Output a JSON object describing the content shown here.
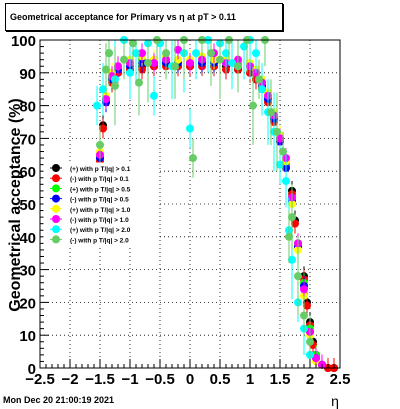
{
  "title": "Geometrical acceptance for Primary vs   η at pT > 0.11",
  "timestamp": "Mon Dec 20 21:00:19 2021",
  "chart_data": {
    "type": "scatter",
    "title": "Geometrical acceptance for Primary vs   η at pT > 0.11",
    "xlabel": "η",
    "ylabel": "Geometrical acceptance (%)",
    "xlim": [
      -2.5,
      2.5
    ],
    "ylim": [
      0,
      100
    ],
    "x_ticks": [
      "−2.5",
      "−2",
      "−1.5",
      "−1",
      "−0.5",
      "0",
      "0.5",
      "1",
      "1.5",
      "2",
      "2.5"
    ],
    "y_ticks": [
      "0",
      "10",
      "20",
      "30",
      "40",
      "50",
      "60",
      "70",
      "80",
      "90",
      "100"
    ],
    "grid": true,
    "legend_position": "left-middle",
    "series": [
      {
        "name": "(+) with p T/|q| > 0.1",
        "color": "#000000",
        "x": [
          -1.5,
          -1.45,
          -1.4,
          -1.3,
          -1.2,
          -1.0,
          -0.8,
          -0.6,
          -0.4,
          -0.2,
          0.0,
          0.2,
          0.4,
          0.6,
          0.8,
          1.0,
          1.1,
          1.2,
          1.3,
          1.4,
          1.5,
          1.6,
          1.7,
          1.75,
          1.8,
          1.9,
          1.95,
          2.0,
          2.05,
          2.1,
          2.2,
          2.3,
          2.4
        ],
        "y": [
          64,
          74,
          82,
          88,
          90,
          91,
          92,
          92,
          93,
          92,
          92,
          93,
          92,
          92,
          91,
          90,
          88,
          86,
          82,
          76,
          70,
          62,
          54,
          45,
          38,
          28,
          20,
          14,
          8,
          4,
          1,
          0,
          0
        ]
      },
      {
        "name": "(-) with p T/|q| > 0.1",
        "color": "#ff0000",
        "x": [
          -1.5,
          -1.45,
          -1.4,
          -1.3,
          -1.2,
          -1.0,
          -0.8,
          -0.6,
          -0.4,
          -0.2,
          0.0,
          0.2,
          0.4,
          0.6,
          0.8,
          1.0,
          1.1,
          1.2,
          1.3,
          1.4,
          1.5,
          1.6,
          1.7,
          1.75,
          1.8,
          1.9,
          1.95,
          2.0,
          2.05,
          2.1,
          2.2,
          2.3,
          2.4
        ],
        "y": [
          63,
          73,
          81,
          87,
          90,
          91,
          91,
          92,
          92,
          92,
          92,
          92,
          92,
          91,
          91,
          90,
          88,
          85,
          81,
          75,
          69,
          61,
          53,
          44,
          37,
          27,
          19,
          13,
          7,
          3,
          1,
          0,
          0
        ]
      },
      {
        "name": "(+) with p T/|q| > 0.5",
        "color": "#00ff00",
        "x": [
          -1.5,
          -1.4,
          -1.3,
          -1.2,
          -1.0,
          -0.8,
          -0.6,
          -0.4,
          -0.2,
          0.0,
          0.2,
          0.4,
          0.6,
          0.8,
          1.0,
          1.1,
          1.2,
          1.3,
          1.4,
          1.5,
          1.6,
          1.7,
          1.8,
          1.9,
          2.0,
          2.1,
          2.2
        ],
        "y": [
          65,
          82,
          89,
          92,
          93,
          94,
          93,
          94,
          93,
          93,
          94,
          93,
          94,
          93,
          92,
          90,
          87,
          83,
          77,
          70,
          62,
          52,
          38,
          26,
          12,
          4,
          1
        ]
      },
      {
        "name": "(-) with p T/|q| > 0.5",
        "color": "#0000ff",
        "x": [
          -1.5,
          -1.4,
          -1.3,
          -1.2,
          -1.0,
          -0.8,
          -0.6,
          -0.4,
          -0.2,
          0.0,
          0.2,
          0.4,
          0.6,
          0.8,
          1.0,
          1.1,
          1.2,
          1.3,
          1.4,
          1.5,
          1.6,
          1.7,
          1.8,
          1.9,
          2.0,
          2.1,
          2.2
        ],
        "y": [
          64,
          81,
          88,
          91,
          92,
          93,
          93,
          93,
          93,
          93,
          93,
          93,
          93,
          92,
          92,
          90,
          86,
          82,
          76,
          69,
          61,
          51,
          37,
          25,
          11,
          3,
          1
        ]
      },
      {
        "name": "(+) with p T/|q| > 1.0",
        "color": "#ffff00",
        "x": [
          -1.5,
          -1.4,
          -1.3,
          -1.2,
          -1.0,
          -0.8,
          -0.6,
          -0.4,
          -0.2,
          0.0,
          0.2,
          0.4,
          0.6,
          0.8,
          1.0,
          1.1,
          1.2,
          1.3,
          1.4,
          1.5,
          1.6,
          1.7,
          1.8,
          1.9,
          2.0,
          2.1
        ],
        "y": [
          66,
          83,
          90,
          92,
          94,
          95,
          94,
          95,
          94,
          94,
          95,
          94,
          94,
          94,
          93,
          91,
          88,
          84,
          78,
          71,
          63,
          50,
          36,
          22,
          10,
          2
        ]
      },
      {
        "name": "(-) with p T/|q| > 1.0",
        "color": "#ff00ff",
        "x": [
          -1.5,
          -1.4,
          -1.3,
          -1.2,
          -1.0,
          -0.8,
          -0.6,
          -0.4,
          -0.2,
          0.0,
          0.2,
          0.4,
          0.6,
          0.8,
          1.0,
          1.1,
          1.2,
          1.3,
          1.4,
          1.5,
          1.6,
          1.7,
          1.8,
          1.9,
          2.0,
          2.1,
          2.2
        ],
        "y": [
          65,
          82,
          89,
          92,
          93,
          96,
          93,
          94,
          97,
          93,
          94,
          96,
          93,
          94,
          92,
          90,
          87,
          83,
          77,
          70,
          64,
          52,
          38,
          24,
          11,
          3,
          1
        ]
      },
      {
        "name": "(+) with p T/|q| > 2.0",
        "color": "#00ffff",
        "x": [
          -1.55,
          -1.45,
          -1.35,
          -1.25,
          -1.1,
          -1.0,
          -0.9,
          -0.7,
          -0.6,
          -0.5,
          -0.3,
          -0.1,
          0.0,
          0.1,
          0.3,
          0.5,
          0.6,
          0.7,
          0.9,
          1.0,
          1.1,
          1.2,
          1.3,
          1.4,
          1.5,
          1.6,
          1.65,
          1.7,
          1.8,
          1.9,
          2.0
        ],
        "y": [
          80,
          85,
          96,
          88,
          100,
          90,
          96,
          99,
          83,
          99,
          92,
          96,
          73,
          96,
          100,
          99,
          96,
          93,
          98,
          100,
          96,
          85,
          78,
          72,
          62,
          57,
          42,
          33,
          20,
          12,
          4
        ]
      },
      {
        "name": "(-) with p T/|q| > 2.0",
        "color": "#66cc66",
        "x": [
          -1.5,
          -1.4,
          -1.35,
          -1.25,
          -1.1,
          -0.95,
          -0.85,
          -0.7,
          -0.55,
          -0.4,
          -0.25,
          -0.1,
          0.05,
          0.2,
          0.35,
          0.5,
          0.65,
          0.8,
          0.95,
          1.05,
          1.15,
          1.25,
          1.35,
          1.45,
          1.55,
          1.65,
          1.7,
          1.8,
          1.9,
          2.0
        ],
        "y": [
          68,
          91,
          96,
          86,
          94,
          99,
          87,
          93,
          100,
          96,
          92,
          100,
          64,
          100,
          96,
          94,
          100,
          92,
          100,
          80,
          88,
          100,
          78,
          72,
          66,
          40,
          46,
          28,
          16,
          8
        ]
      }
    ]
  }
}
